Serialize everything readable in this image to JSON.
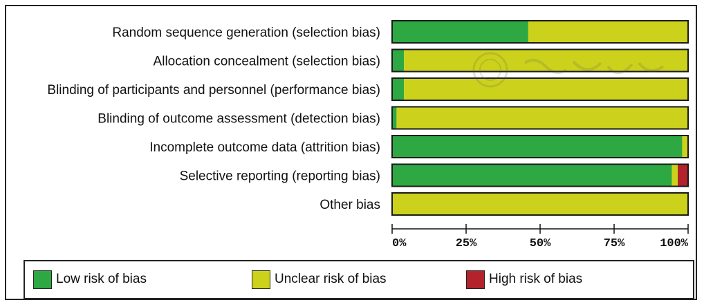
{
  "chart_data": {
    "type": "bar",
    "stacked": true,
    "orientation": "horizontal",
    "categories": [
      "Random sequence generation (selection bias)",
      "Allocation concealment (selection bias)",
      "Blinding of participants and personnel (performance bias)",
      "Blinding of outcome assessment (detection bias)",
      "Incomplete outcome data (attrition bias)",
      "Selective reporting (reporting bias)",
      "Other bias"
    ],
    "series": [
      {
        "name": "Low risk of bias",
        "color": "#2ea843",
        "values": [
          46,
          4,
          4,
          1.5,
          98,
          94.5,
          0
        ]
      },
      {
        "name": "Unclear risk of bias",
        "color": "#ccd21c",
        "values": [
          54,
          96,
          96,
          98.5,
          2,
          2,
          100
        ]
      },
      {
        "name": "High risk of bias",
        "color": "#b3232c",
        "values": [
          0,
          0,
          0,
          0,
          0,
          3.5,
          0
        ]
      }
    ],
    "xlim": [
      0,
      100
    ],
    "xticks": [
      "0%",
      "25%",
      "50%",
      "75%",
      "100%"
    ],
    "legend_position": "bottom"
  }
}
